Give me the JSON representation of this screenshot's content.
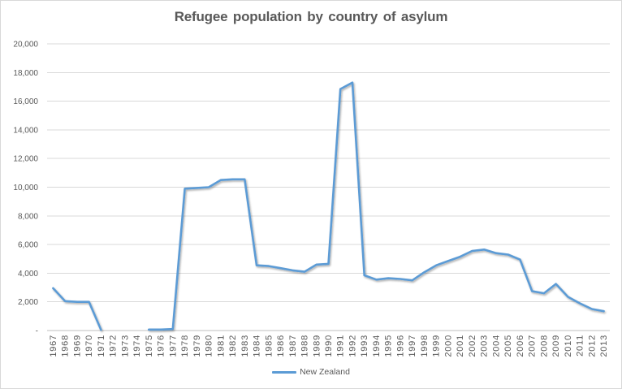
{
  "chart_data": {
    "type": "line",
    "title": "Refugee population by country of asylum",
    "x": [
      1967,
      1968,
      1969,
      1970,
      1971,
      1972,
      1973,
      1974,
      1975,
      1976,
      1977,
      1978,
      1979,
      1980,
      1981,
      1982,
      1983,
      1984,
      1985,
      1986,
      1987,
      1988,
      1989,
      1990,
      1991,
      1992,
      1993,
      1994,
      1995,
      1996,
      1997,
      1998,
      1999,
      2000,
      2001,
      2002,
      2003,
      2004,
      2005,
      2006,
      2007,
      2008,
      2009,
      2010,
      2011,
      2012,
      2013
    ],
    "series": [
      {
        "name": "New Zealand",
        "color": "#5B9BD5",
        "values": [
          2950,
          2050,
          2000,
          2000,
          50,
          null,
          null,
          null,
          70,
          70,
          100,
          9900,
          9950,
          10000,
          10500,
          10550,
          10550,
          4550,
          4500,
          4350,
          4200,
          4100,
          4600,
          4650,
          16850,
          17300,
          3850,
          3550,
          3650,
          3600,
          3500,
          4070,
          4550,
          4850,
          5150,
          5550,
          5650,
          5400,
          5300,
          4950,
          2750,
          2600,
          3250,
          2350,
          1900,
          1500,
          1350
        ]
      }
    ],
    "xlabel": "",
    "ylabel": "",
    "ylim": [
      0,
      20000
    ],
    "ytick_interval": 2000,
    "ytick_labels": [
      "-",
      "2,000",
      "4,000",
      "6,000",
      "8,000",
      "10,000",
      "12,000",
      "14,000",
      "16,000",
      "18,000",
      "20,000"
    ],
    "grid": true,
    "legend_position": "bottom",
    "colors": {
      "line": "#5B9BD5",
      "gridline": "#D9D9D9",
      "axis_line": "#BFBFBF",
      "tick_label": "#595959",
      "title": "#595959",
      "background": "#FFFFFF",
      "border": "#D9D9D9"
    }
  }
}
